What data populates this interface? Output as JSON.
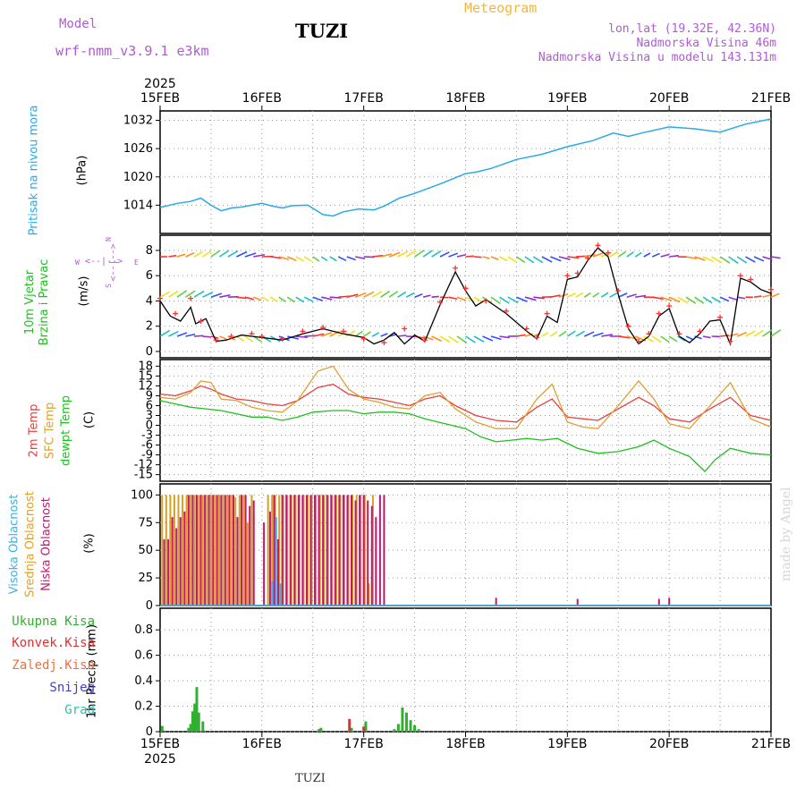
{
  "header": {
    "model_label": "Model",
    "model_name": "wrf-nmm_v3.9.1 e3km",
    "station": "TUZI",
    "title": "Meteogram",
    "lonlat": "lon,lat (19.32E, 42.36N)",
    "altitude": "Nadmorska Visina 46m",
    "model_altitude": "Nadmorska Visina u modelu 143.131m"
  },
  "footer": {
    "station": "TUZI",
    "credit": "made by Angel"
  },
  "colors": {
    "pressure": "#2aa9e8",
    "wind_speed": "#000000",
    "gust_cross": "#ff3030",
    "t2m": "#e84040",
    "tsfc": "#e0a030",
    "dewpt": "#20c020",
    "high_cloud": "#40b0e0",
    "mid_cloud": "#d8a020",
    "low_cloud": "#c01870",
    "total_precip": "#30b030",
    "conv_precip": "#e03030"
  },
  "chart_data": {
    "type": "meteogram",
    "x_axis": {
      "year": "2025",
      "tick_labels": [
        "15FEB",
        "16FEB",
        "17FEB",
        "18FEB",
        "19FEB",
        "20FEB",
        "21FEB"
      ],
      "range_days": [
        0,
        6
      ]
    },
    "panels": [
      {
        "id": "pressure",
        "type": "line",
        "ylabel": "Pritisak na nivou mora",
        "unit": "(hPa)",
        "yticks": [
          1014,
          1020,
          1026,
          1032
        ],
        "ylim": [
          1008,
          1034
        ],
        "series": [
          {
            "name": "MSLP",
            "x": [
              0,
              0.17,
              0.3,
              0.4,
              0.5,
              0.6,
              0.7,
              0.8,
              1.0,
              1.1,
              1.2,
              1.3,
              1.45,
              1.6,
              1.7,
              1.8,
              1.95,
              2.1,
              2.2,
              2.35,
              2.5,
              2.75,
              3.0,
              3.1,
              3.25,
              3.5,
              3.75,
              4.0,
              4.25,
              4.45,
              4.6,
              4.75,
              5.0,
              5.25,
              5.5,
              5.75,
              6.0
            ],
            "y": [
              1013.5,
              1014.4,
              1014.8,
              1015.5,
              1014.0,
              1012.8,
              1013.4,
              1013.6,
              1014.4,
              1013.8,
              1013.4,
              1013.9,
              1014.0,
              1012.0,
              1011.7,
              1012.6,
              1013.2,
              1013.0,
              1013.8,
              1015.5,
              1016.5,
              1018.5,
              1020.7,
              1021.0,
              1021.8,
              1023.7,
              1024.8,
              1026.4,
              1027.7,
              1029.3,
              1028.6,
              1029.4,
              1030.6,
              1030.2,
              1029.5,
              1031.2,
              1032.3
            ]
          }
        ]
      },
      {
        "id": "wind",
        "type": "line+barbs",
        "ylabel": "10m Vjetar Brzina i Pravac",
        "unit": "(m/s)",
        "compass": {
          "north": "N",
          "south": "S",
          "east": "E",
          "west": "W"
        },
        "yticks": [
          0,
          2,
          4,
          6,
          8
        ],
        "ylim": [
          -0.5,
          9.2
        ],
        "barb_levels": [
          7.5,
          4.3,
          1.2
        ],
        "series": [
          {
            "name": "wind speed",
            "x": [
              0,
              0.1,
              0.2,
              0.3,
              0.35,
              0.45,
              0.55,
              0.65,
              0.8,
              1.0,
              1.2,
              1.4,
              1.6,
              1.8,
              2.0,
              2.1,
              2.2,
              2.3,
              2.4,
              2.5,
              2.6,
              2.75,
              2.9,
              3.0,
              3.1,
              3.2,
              3.4,
              3.6,
              3.7,
              3.8,
              3.9,
              4.0,
              4.1,
              4.2,
              4.3,
              4.4,
              4.5,
              4.6,
              4.7,
              4.8,
              4.9,
              5.0,
              5.1,
              5.2,
              5.3,
              5.4,
              5.5,
              5.6,
              5.7,
              5.8,
              5.9,
              6.0
            ],
            "y": [
              4.0,
              2.8,
              2.4,
              3.5,
              2.2,
              2.6,
              0.8,
              0.9,
              1.3,
              1.1,
              0.9,
              1.4,
              1.8,
              1.4,
              1.1,
              0.6,
              0.9,
              1.5,
              0.6,
              1.3,
              0.8,
              3.7,
              6.3,
              4.8,
              3.6,
              4.1,
              3.0,
              1.6,
              1.0,
              2.8,
              2.3,
              5.7,
              5.9,
              7.2,
              8.2,
              7.5,
              4.5,
              1.8,
              0.6,
              1.2,
              2.8,
              3.4,
              1.2,
              0.7,
              1.4,
              2.4,
              2.5,
              0.6,
              5.8,
              5.5,
              4.9,
              4.6
            ]
          },
          {
            "name": "wind gust",
            "x": [
              0,
              0.15,
              0.3,
              0.4,
              0.55,
              0.7,
              0.9,
              1.0,
              1.2,
              1.4,
              1.6,
              1.8,
              2.0,
              2.2,
              2.4,
              2.6,
              2.75,
              2.9,
              3.0,
              3.2,
              3.4,
              3.6,
              3.7,
              3.8,
              4.0,
              4.1,
              4.2,
              4.3,
              4.4,
              4.5,
              4.6,
              4.7,
              4.8,
              4.9,
              5.0,
              5.1,
              5.3,
              5.5,
              5.6,
              5.7,
              5.8,
              6.0
            ],
            "y": [
              4.2,
              3.0,
              4.2,
              2.4,
              0.9,
              1.2,
              1.4,
              1.2,
              1.0,
              1.6,
              1.9,
              1.6,
              1.0,
              0.7,
              1.8,
              0.9,
              3.9,
              6.6,
              5.0,
              4.0,
              3.2,
              1.8,
              1.1,
              3.0,
              6.0,
              6.2,
              7.4,
              8.4,
              7.8,
              4.8,
              2.0,
              0.8,
              1.4,
              3.0,
              3.6,
              1.4,
              1.6,
              2.7,
              0.8,
              6.0,
              5.7,
              4.9
            ]
          }
        ]
      },
      {
        "id": "temperature",
        "type": "line",
        "ylabels": [
          "2m Temp",
          "SFC Temp",
          "dewpt Temp"
        ],
        "unit": "(C)",
        "yticks": [
          -15,
          -12,
          -9,
          -6,
          -3,
          0,
          3,
          6,
          9,
          12,
          15,
          18
        ],
        "ylim": [
          -17,
          20
        ],
        "series": [
          {
            "name": "2m Temp",
            "x": [
              0,
              0.15,
              0.3,
              0.4,
              0.5,
              0.6,
              0.75,
              0.9,
              1.05,
              1.2,
              1.35,
              1.55,
              1.7,
              1.85,
              2.0,
              2.15,
              2.3,
              2.45,
              2.6,
              2.75,
              2.9,
              3.1,
              3.3,
              3.5,
              3.7,
              3.85,
              4.0,
              4.15,
              4.3,
              4.5,
              4.7,
              4.85,
              5.0,
              5.2,
              5.4,
              5.6,
              5.8,
              6.0
            ],
            "y": [
              9.5,
              9.0,
              10.5,
              12.0,
              11.0,
              9.5,
              8.0,
              7.5,
              6.5,
              6.0,
              7.5,
              11.5,
              12.5,
              9.5,
              8.5,
              8.0,
              7.0,
              6.0,
              8.0,
              9.0,
              6.0,
              3.0,
              1.5,
              1.0,
              5.5,
              8.0,
              2.5,
              2.0,
              1.5,
              5.0,
              8.5,
              6.0,
              2.0,
              1.0,
              5.0,
              8.5,
              3.0,
              1.5
            ]
          },
          {
            "name": "SFC Temp",
            "x": [
              0,
              0.15,
              0.3,
              0.4,
              0.5,
              0.6,
              0.75,
              0.9,
              1.05,
              1.2,
              1.35,
              1.55,
              1.7,
              1.85,
              2.0,
              2.15,
              2.3,
              2.45,
              2.6,
              2.75,
              2.9,
              3.1,
              3.3,
              3.5,
              3.7,
              3.85,
              4.0,
              4.15,
              4.3,
              4.5,
              4.7,
              4.85,
              5.0,
              5.2,
              5.4,
              5.6,
              5.8,
              6.0
            ],
            "y": [
              8.5,
              8.0,
              10.0,
              13.5,
              13.0,
              8.0,
              7.5,
              5.5,
              4.5,
              4.0,
              7.5,
              16.5,
              18.0,
              11.0,
              8.0,
              7.0,
              5.5,
              5.0,
              9.0,
              10.0,
              5.0,
              1.0,
              -1.0,
              -1.0,
              8.0,
              12.5,
              1.0,
              -0.5,
              -1.0,
              6.0,
              13.5,
              8.0,
              0.5,
              -1.0,
              6.0,
              13.0,
              2.0,
              -0.5
            ]
          },
          {
            "name": "dewpt Temp",
            "x": [
              0,
              0.15,
              0.3,
              0.45,
              0.6,
              0.75,
              0.9,
              1.05,
              1.2,
              1.35,
              1.5,
              1.7,
              1.85,
              2.0,
              2.15,
              2.3,
              2.45,
              2.6,
              2.8,
              3.0,
              3.15,
              3.3,
              3.45,
              3.6,
              3.75,
              3.9,
              4.1,
              4.3,
              4.5,
              4.7,
              4.85,
              5.0,
              5.2,
              5.35,
              5.45,
              5.6,
              5.8,
              6.0
            ],
            "y": [
              7.5,
              6.5,
              5.5,
              5.0,
              4.5,
              3.5,
              2.5,
              2.5,
              1.5,
              2.5,
              4.0,
              4.5,
              4.5,
              3.5,
              4.0,
              4.0,
              3.5,
              2.0,
              0.5,
              -1.0,
              -3.5,
              -5.0,
              -4.5,
              -4.0,
              -4.5,
              -4.0,
              -7.0,
              -8.5,
              -8.0,
              -6.5,
              -4.5,
              -7.0,
              -9.5,
              -14.0,
              -10.5,
              -7.0,
              -8.5,
              -9.0
            ]
          }
        ]
      },
      {
        "id": "cloud",
        "type": "bar",
        "ylabels": [
          "Visoka Oblacnost",
          "Srednja Oblacnost",
          "Niska Oblacnost"
        ],
        "unit": "(%)",
        "yticks": [
          0,
          25,
          50,
          75,
          100
        ],
        "ylim": [
          0,
          110
        ],
        "series": [
          {
            "name": "Srednja Oblacnost",
            "x": [
              0.02,
              0.06,
              0.1,
              0.14,
              0.18,
              0.22,
              0.26,
              0.3,
              0.34,
              0.38,
              0.42,
              0.46,
              0.5,
              0.54,
              0.58,
              0.62,
              0.66,
              0.7,
              0.74,
              0.78,
              0.82,
              0.86,
              0.9,
              1.06,
              1.1,
              1.13,
              1.17,
              1.21,
              1.25,
              1.29,
              1.33,
              1.37,
              1.41,
              1.45,
              1.49,
              1.53,
              1.57,
              1.61,
              1.65,
              1.69,
              1.73,
              1.77,
              1.81,
              1.85,
              1.89,
              1.93,
              1.97,
              2.01,
              2.05,
              2.09
            ],
            "y": [
              100,
              100,
              100,
              100,
              100,
              100,
              100,
              100,
              100,
              100,
              100,
              100,
              100,
              100,
              100,
              100,
              100,
              100,
              98,
              100,
              100,
              75,
              100,
              100,
              100,
              100,
              100,
              100,
              100,
              100,
              100,
              100,
              100,
              100,
              100,
              100,
              100,
              100,
              100,
              100,
              100,
              100,
              100,
              100,
              100,
              100,
              100,
              100,
              20,
              100
            ]
          },
          {
            "name": "Niska Oblacnost",
            "x": [
              0.04,
              0.08,
              0.12,
              0.16,
              0.2,
              0.24,
              0.28,
              0.32,
              0.36,
              0.4,
              0.44,
              0.48,
              0.52,
              0.56,
              0.6,
              0.64,
              0.68,
              0.72,
              0.76,
              0.8,
              0.84,
              0.88,
              0.92,
              1.02,
              1.08,
              1.12,
              1.16,
              1.2,
              1.24,
              1.28,
              1.32,
              1.36,
              1.4,
              1.44,
              1.48,
              1.52,
              1.56,
              1.6,
              1.64,
              1.68,
              1.72,
              1.76,
              1.8,
              1.84,
              1.88,
              1.92,
              1.96,
              2.0,
              2.04,
              2.08,
              2.12,
              2.16,
              2.2,
              3.3,
              4.1,
              4.9,
              5.0
            ],
            "y": [
              60,
              60,
              80,
              70,
              80,
              85,
              100,
              100,
              100,
              100,
              100,
              100,
              100,
              100,
              100,
              100,
              100,
              100,
              80,
              100,
              100,
              90,
              95,
              75,
              85,
              100,
              60,
              100,
              100,
              100,
              100,
              100,
              100,
              100,
              100,
              100,
              100,
              100,
              100,
              100,
              100,
              100,
              100,
              100,
              100,
              95,
              100,
              100,
              95,
              90,
              80,
              100,
              100,
              7,
              6,
              6,
              7
            ]
          },
          {
            "name": "Visoka Oblacnost",
            "x": [
              1.1,
              1.14,
              1.18
            ],
            "y": [
              22,
              80,
              20
            ]
          }
        ]
      },
      {
        "id": "precip",
        "type": "bar",
        "ylabels": [
          "Ukupna Kisa",
          "Konvek.Kisa",
          "Zaledj.Kisa",
          "Snijeg",
          "Grad"
        ],
        "unit": "1hr Precip (mm)",
        "yticks": [
          0,
          0.2,
          0.4,
          0.6,
          0.8
        ],
        "ylim": [
          0,
          0.97
        ],
        "series": [
          {
            "name": "Ukupna Kisa",
            "x": [
              0.02,
              0.28,
              0.3,
              0.32,
              0.34,
              0.36,
              0.38,
              0.42,
              1.56,
              1.58,
              1.88,
              2.02,
              2.3,
              2.34,
              2.38,
              2.42,
              2.46,
              2.5,
              2.54
            ],
            "y": [
              0.045,
              0.03,
              0.06,
              0.16,
              0.22,
              0.35,
              0.15,
              0.08,
              0.02,
              0.03,
              0.03,
              0.08,
              0.02,
              0.06,
              0.19,
              0.15,
              0.09,
              0.05,
              0.02
            ]
          },
          {
            "name": "Konvek.Kisa",
            "x": [
              1.86,
              2.0
            ],
            "y": [
              0.1,
              0.04
            ]
          }
        ]
      }
    ]
  }
}
